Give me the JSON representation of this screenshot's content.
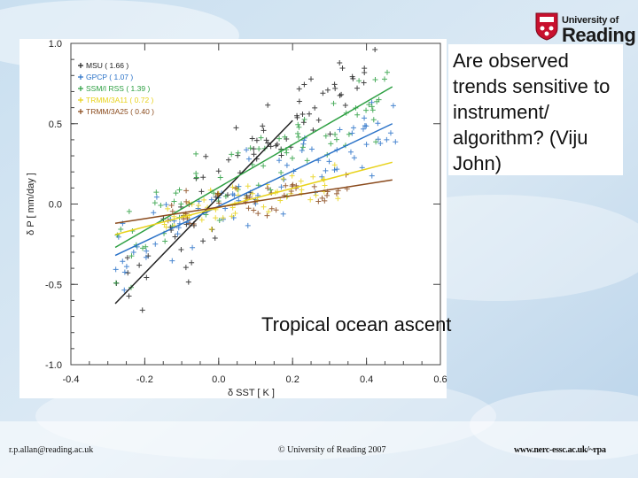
{
  "slide": {
    "logo_line1": "University of",
    "logo_line2": "Reading",
    "callout": "Are observed trends sensitive to instrument/ algorithm? (Viju John)",
    "annotation": "Tropical ocean ascent",
    "footer_left": "r.p.allan@reading.ac.uk",
    "footer_center": "© University of Reading 2007",
    "footer_right": "www.nerc-essc.ac.uk/~rpa"
  },
  "chart_data": {
    "type": "scatter",
    "xlabel": "δ SST [ K ]",
    "ylabel": "δ P [ mm/day ]",
    "xlim": [
      -0.4,
      0.6
    ],
    "ylim": [
      -1.0,
      1.0
    ],
    "xticks": [
      "-0.4",
      "-0.2",
      "0.0",
      "0.2",
      "0.4",
      "0.6"
    ],
    "yticks": [
      "1.0",
      "0.5",
      "0.0",
      "-0.5",
      "-1.0"
    ],
    "grid": false,
    "legend_position": "top-left",
    "series": [
      {
        "name": "MSU",
        "legend_value": "1.66",
        "color": "#222222",
        "line": [
          [
            -0.28,
            -0.62
          ],
          [
            0.2,
            0.52
          ]
        ]
      },
      {
        "name": "GPCP",
        "legend_value": "1.07",
        "color": "#2a72c8",
        "line": [
          [
            -0.28,
            -0.32
          ],
          [
            0.47,
            0.5
          ]
        ]
      },
      {
        "name": "SSM/I RSS",
        "legend_value": "1.39",
        "color": "#2ea043",
        "line": [
          [
            -0.28,
            -0.27
          ],
          [
            0.47,
            0.73
          ]
        ]
      },
      {
        "name": "TRMM/3A11",
        "legend_value": "0.72",
        "color": "#e8d21a",
        "line": [
          [
            -0.28,
            -0.19
          ],
          [
            0.47,
            0.26
          ]
        ]
      },
      {
        "name": "TRMM/3A25",
        "legend_value": "0.40",
        "color": "#8a4a1c",
        "line": [
          [
            -0.28,
            -0.12
          ],
          [
            0.47,
            0.15
          ]
        ]
      }
    ]
  }
}
